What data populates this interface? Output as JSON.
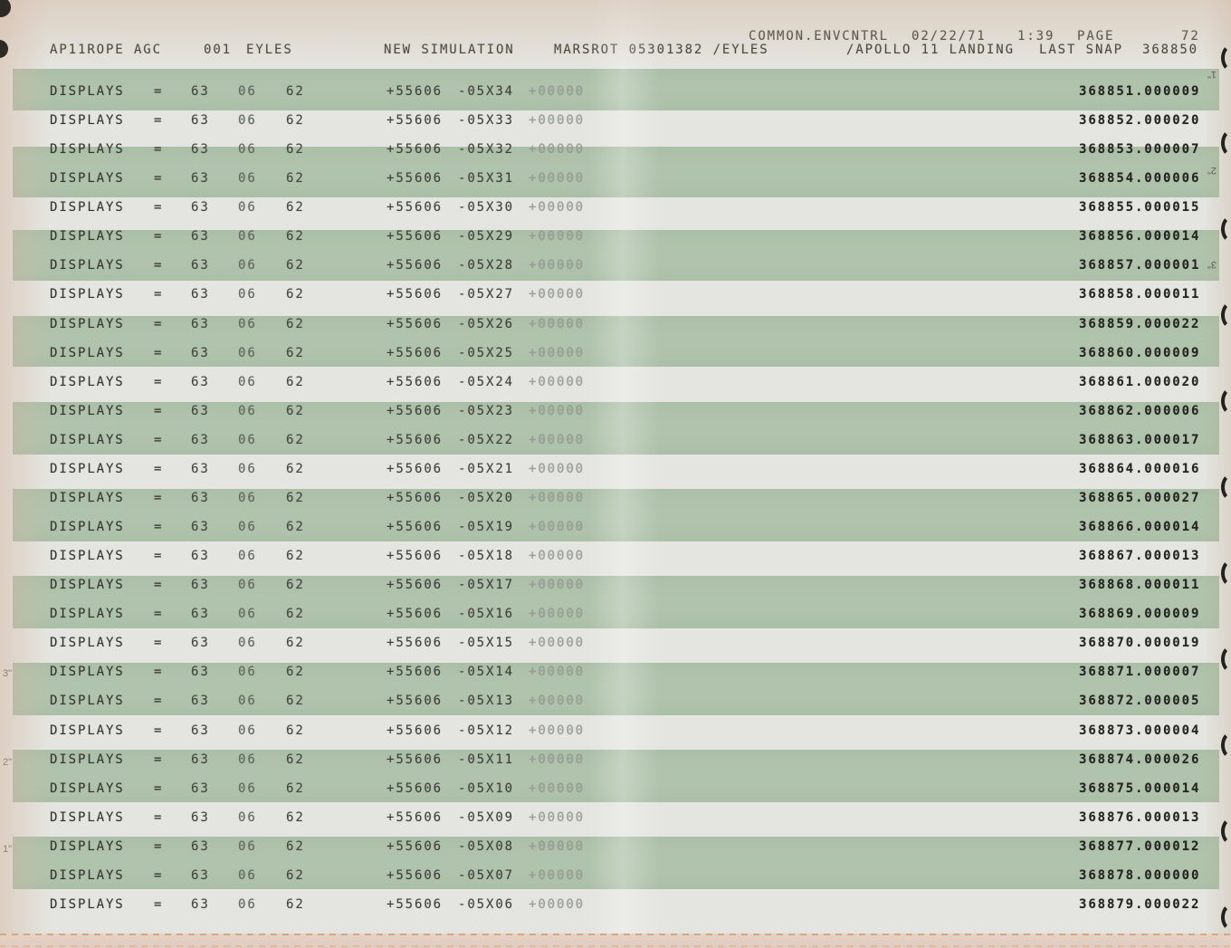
{
  "header": {
    "line1": {
      "system": "COMMON.ENVCNTRL",
      "date": "02/22/71",
      "time": "1:39",
      "page_label": "PAGE",
      "page_number": "72"
    },
    "line2": {
      "program": "AP11ROPE AGC",
      "run_number": "001",
      "user": "EYLES",
      "simulation": "NEW SIMULATION",
      "run_id": "MARSROT 05301382 /EYLES",
      "mission": "/APOLLO 11 LANDING",
      "last_snap_label": "LAST SNAP",
      "last_snap_value": "368850"
    }
  },
  "rows": [
    {
      "label": "DISPLAYS",
      "eq": "=",
      "v1": "63",
      "v2": "06",
      "v3": "62",
      "v4": "+55606",
      "v5": "-05X34",
      "v6": "+00000",
      "seq": "368851.000009"
    },
    {
      "label": "DISPLAYS",
      "eq": "=",
      "v1": "63",
      "v2": "06",
      "v3": "62",
      "v4": "+55606",
      "v5": "-05X33",
      "v6": "+00000",
      "seq": "368852.000020"
    },
    {
      "label": "DISPLAYS",
      "eq": "=",
      "v1": "63",
      "v2": "06",
      "v3": "62",
      "v4": "+55606",
      "v5": "-05X32",
      "v6": "+00000",
      "seq": "368853.000007"
    },
    {
      "label": "DISPLAYS",
      "eq": "=",
      "v1": "63",
      "v2": "06",
      "v3": "62",
      "v4": "+55606",
      "v5": "-05X31",
      "v6": "+00000",
      "seq": "368854.000006"
    },
    {
      "label": "DISPLAYS",
      "eq": "=",
      "v1": "63",
      "v2": "06",
      "v3": "62",
      "v4": "+55606",
      "v5": "-05X30",
      "v6": "+00000",
      "seq": "368855.000015"
    },
    {
      "label": "DISPLAYS",
      "eq": "=",
      "v1": "63",
      "v2": "06",
      "v3": "62",
      "v4": "+55606",
      "v5": "-05X29",
      "v6": "+00000",
      "seq": "368856.000014"
    },
    {
      "label": "DISPLAYS",
      "eq": "=",
      "v1": "63",
      "v2": "06",
      "v3": "62",
      "v4": "+55606",
      "v5": "-05X28",
      "v6": "+00000",
      "seq": "368857.000001"
    },
    {
      "label": "DISPLAYS",
      "eq": "=",
      "v1": "63",
      "v2": "06",
      "v3": "62",
      "v4": "+55606",
      "v5": "-05X27",
      "v6": "+00000",
      "seq": "368858.000011"
    },
    {
      "label": "DISPLAYS",
      "eq": "=",
      "v1": "63",
      "v2": "06",
      "v3": "62",
      "v4": "+55606",
      "v5": "-05X26",
      "v6": "+00000",
      "seq": "368859.000022"
    },
    {
      "label": "DISPLAYS",
      "eq": "=",
      "v1": "63",
      "v2": "06",
      "v3": "62",
      "v4": "+55606",
      "v5": "-05X25",
      "v6": "+00000",
      "seq": "368860.000009"
    },
    {
      "label": "DISPLAYS",
      "eq": "=",
      "v1": "63",
      "v2": "06",
      "v3": "62",
      "v4": "+55606",
      "v5": "-05X24",
      "v6": "+00000",
      "seq": "368861.000020"
    },
    {
      "label": "DISPLAYS",
      "eq": "=",
      "v1": "63",
      "v2": "06",
      "v3": "62",
      "v4": "+55606",
      "v5": "-05X23",
      "v6": "+00000",
      "seq": "368862.000006"
    },
    {
      "label": "DISPLAYS",
      "eq": "=",
      "v1": "63",
      "v2": "06",
      "v3": "62",
      "v4": "+55606",
      "v5": "-05X22",
      "v6": "+00000",
      "seq": "368863.000017"
    },
    {
      "label": "DISPLAYS",
      "eq": "=",
      "v1": "63",
      "v2": "06",
      "v3": "62",
      "v4": "+55606",
      "v5": "-05X21",
      "v6": "+00000",
      "seq": "368864.000016"
    },
    {
      "label": "DISPLAYS",
      "eq": "=",
      "v1": "63",
      "v2": "06",
      "v3": "62",
      "v4": "+55606",
      "v5": "-05X20",
      "v6": "+00000",
      "seq": "368865.000027"
    },
    {
      "label": "DISPLAYS",
      "eq": "=",
      "v1": "63",
      "v2": "06",
      "v3": "62",
      "v4": "+55606",
      "v5": "-05X19",
      "v6": "+00000",
      "seq": "368866.000014"
    },
    {
      "label": "DISPLAYS",
      "eq": "=",
      "v1": "63",
      "v2": "06",
      "v3": "62",
      "v4": "+55606",
      "v5": "-05X18",
      "v6": "+00000",
      "seq": "368867.000013"
    },
    {
      "label": "DISPLAYS",
      "eq": "=",
      "v1": "63",
      "v2": "06",
      "v3": "62",
      "v4": "+55606",
      "v5": "-05X17",
      "v6": "+00000",
      "seq": "368868.000011"
    },
    {
      "label": "DISPLAYS",
      "eq": "=",
      "v1": "63",
      "v2": "06",
      "v3": "62",
      "v4": "+55606",
      "v5": "-05X16",
      "v6": "+00000",
      "seq": "368869.000009"
    },
    {
      "label": "DISPLAYS",
      "eq": "=",
      "v1": "63",
      "v2": "06",
      "v3": "62",
      "v4": "+55606",
      "v5": "-05X15",
      "v6": "+00000",
      "seq": "368870.000019"
    },
    {
      "label": "DISPLAYS",
      "eq": "=",
      "v1": "63",
      "v2": "06",
      "v3": "62",
      "v4": "+55606",
      "v5": "-05X14",
      "v6": "+00000",
      "seq": "368871.000007"
    },
    {
      "label": "DISPLAYS",
      "eq": "=",
      "v1": "63",
      "v2": "06",
      "v3": "62",
      "v4": "+55606",
      "v5": "-05X13",
      "v6": "+00000",
      "seq": "368872.000005"
    },
    {
      "label": "DISPLAYS",
      "eq": "=",
      "v1": "63",
      "v2": "06",
      "v3": "62",
      "v4": "+55606",
      "v5": "-05X12",
      "v6": "+00000",
      "seq": "368873.000004"
    },
    {
      "label": "DISPLAYS",
      "eq": "=",
      "v1": "63",
      "v2": "06",
      "v3": "62",
      "v4": "+55606",
      "v5": "-05X11",
      "v6": "+00000",
      "seq": "368874.000026"
    },
    {
      "label": "DISPLAYS",
      "eq": "=",
      "v1": "63",
      "v2": "06",
      "v3": "62",
      "v4": "+55606",
      "v5": "-05X10",
      "v6": "+00000",
      "seq": "368875.000014"
    },
    {
      "label": "DISPLAYS",
      "eq": "=",
      "v1": "63",
      "v2": "06",
      "v3": "62",
      "v4": "+55606",
      "v5": "-05X09",
      "v6": "+00000",
      "seq": "368876.000013"
    },
    {
      "label": "DISPLAYS",
      "eq": "=",
      "v1": "63",
      "v2": "06",
      "v3": "62",
      "v4": "+55606",
      "v5": "-05X08",
      "v6": "+00000",
      "seq": "368877.000012"
    },
    {
      "label": "DISPLAYS",
      "eq": "=",
      "v1": "63",
      "v2": "06",
      "v3": "62",
      "v4": "+55606",
      "v5": "-05X07",
      "v6": "+00000",
      "seq": "368878.000000"
    },
    {
      "label": "DISPLAYS",
      "eq": "=",
      "v1": "63",
      "v2": "06",
      "v3": "62",
      "v4": "+55606",
      "v5": "-05X06",
      "v6": "+00000",
      "seq": "368879.000022"
    }
  ],
  "margin_marks": {
    "left": [
      "3\"",
      "2\"",
      "1\""
    ],
    "right": [
      "1\"",
      "2\"",
      "3\""
    ]
  },
  "colors": {
    "green_bar": "#b0c3ac",
    "paper": "#e4e5e0",
    "ink": "#35352f",
    "ink_bold": "#23231f",
    "ink_faded": "#989e96",
    "perforation": "#cf9a6e"
  }
}
